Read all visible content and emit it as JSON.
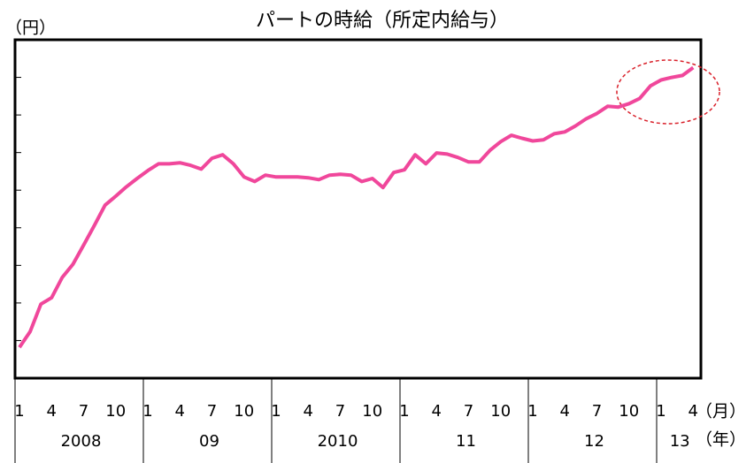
{
  "chart_data": {
    "type": "line",
    "title": "パートの時給（所定内給与）",
    "y_label": "（円）",
    "x_month_unit": "（月）",
    "x_year_unit": "（年）",
    "categories": [
      "1",
      null,
      null,
      "4",
      null,
      null,
      "7",
      null,
      null,
      "10",
      null,
      null,
      "1",
      null,
      null,
      "4",
      null,
      null,
      "7",
      null,
      null,
      "10",
      null,
      null,
      "1",
      null,
      null,
      "4",
      null,
      null,
      "7",
      null,
      null,
      "10",
      null,
      null,
      "1",
      null,
      null,
      "4",
      null,
      null,
      "7",
      null,
      null,
      "10",
      null,
      null,
      "1",
      null,
      null,
      "4",
      null,
      null,
      "7",
      null,
      null,
      "10",
      null,
      null,
      "1",
      null,
      null,
      "4"
    ],
    "year_groups": [
      "2008",
      "09",
      "2010",
      "11",
      "12",
      "13"
    ],
    "series": [
      {
        "color": "#f0479b",
        "values": [
          0.82,
          1.24,
          1.97,
          2.14,
          2.68,
          3.03,
          3.54,
          4.06,
          4.6,
          4.84,
          5.09,
          5.31,
          5.52,
          5.7,
          5.7,
          5.73,
          5.66,
          5.56,
          5.85,
          5.94,
          5.7,
          5.35,
          5.23,
          5.4,
          5.35,
          5.35,
          5.35,
          5.33,
          5.28,
          5.4,
          5.42,
          5.4,
          5.23,
          5.31,
          5.07,
          5.47,
          5.54,
          5.94,
          5.7,
          5.99,
          5.96,
          5.87,
          5.75,
          5.75,
          6.06,
          6.29,
          6.46,
          6.38,
          6.31,
          6.34,
          6.5,
          6.55,
          6.71,
          6.9,
          7.04,
          7.23,
          7.21,
          7.3,
          7.44,
          7.77,
          7.93,
          8.0,
          8.05,
          8.26
        ]
      }
    ],
    "ylim": [
      0,
      9
    ],
    "yticks": [
      1,
      2,
      3,
      4,
      5,
      6,
      7,
      8
    ]
  }
}
